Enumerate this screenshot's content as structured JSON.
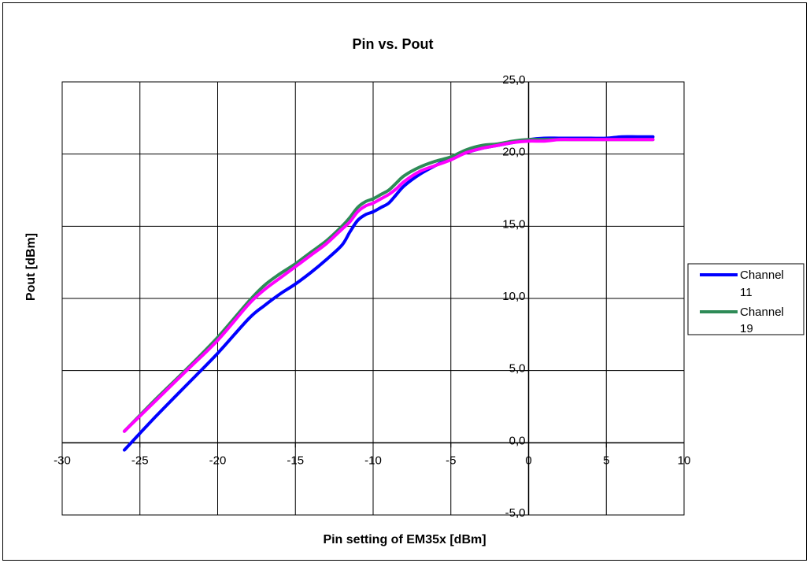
{
  "chart_data": {
    "type": "line",
    "title": "Pin vs. Pout",
    "xlabel": "Pin setting of EM35x [dBm]",
    "ylabel": "Pout [dBm]",
    "xlim": [
      -30,
      10
    ],
    "ylim": [
      -5,
      25
    ],
    "x_ticks": [
      "-30",
      "-25",
      "-20",
      "-15",
      "-10",
      "-5",
      "0",
      "5",
      "10"
    ],
    "y_ticks": [
      "-5,0",
      "0,0",
      "5,0",
      "10,0",
      "15,0",
      "20,0",
      "25,0"
    ],
    "grid": true,
    "legend_position": "right",
    "series": [
      {
        "name": "Channel 11",
        "color": "#0000ff",
        "x": [
          -26,
          -24,
          -22,
          -20,
          -18,
          -17,
          -16,
          -15,
          -14,
          -13,
          -12,
          -11.5,
          -11,
          -10.5,
          -10,
          -9.5,
          -9,
          -8.5,
          -8,
          -7,
          -6,
          -5,
          -4,
          -3,
          -2,
          -1,
          0,
          1,
          2,
          3,
          4,
          5,
          6,
          7,
          8
        ],
        "values": [
          -0.5,
          1.8,
          4.0,
          6.2,
          8.6,
          9.5,
          10.3,
          11.0,
          11.8,
          12.7,
          13.7,
          14.6,
          15.4,
          15.8,
          16.0,
          16.3,
          16.6,
          17.2,
          17.8,
          18.6,
          19.2,
          19.7,
          20.1,
          20.4,
          20.6,
          20.8,
          21.0,
          21.1,
          21.1,
          21.1,
          21.1,
          21.1,
          21.2,
          21.2,
          21.2
        ]
      },
      {
        "name": "Channel 19",
        "color": "#2e8b57",
        "x": [
          -26,
          -24,
          -22,
          -20,
          -18,
          -17,
          -16,
          -15,
          -14,
          -13,
          -12,
          -11.5,
          -11,
          -10.5,
          -10,
          -9.5,
          -9,
          -8.5,
          -8,
          -7,
          -6,
          -5,
          -4,
          -3,
          -2,
          -1,
          0,
          1,
          2,
          3,
          4,
          5,
          6,
          7,
          8
        ],
        "values": [
          0.8,
          3.0,
          5.1,
          7.3,
          9.8,
          10.9,
          11.7,
          12.4,
          13.2,
          14.0,
          15.0,
          15.6,
          16.3,
          16.7,
          16.9,
          17.2,
          17.5,
          18.0,
          18.5,
          19.1,
          19.5,
          19.8,
          20.3,
          20.6,
          20.7,
          20.9,
          21.0,
          21.0,
          21.0,
          21.0,
          21.0,
          21.0,
          21.0,
          21.0,
          21.0
        ]
      },
      {
        "color": "#ff00ff",
        "x": [
          -26,
          -24,
          -22,
          -20,
          -18,
          -17,
          -16,
          -15,
          -14,
          -13,
          -12,
          -11.5,
          -11,
          -10.5,
          -10,
          -9.5,
          -9,
          -8.5,
          -8,
          -7,
          -6,
          -5,
          -4,
          -3,
          -2,
          -1,
          0,
          1,
          2,
          3,
          4,
          5,
          6,
          7,
          8
        ],
        "values": [
          0.8,
          2.9,
          5.0,
          7.1,
          9.6,
          10.6,
          11.4,
          12.2,
          13.0,
          13.8,
          14.8,
          15.3,
          16.0,
          16.4,
          16.6,
          16.9,
          17.2,
          17.6,
          18.1,
          18.8,
          19.2,
          19.6,
          20.1,
          20.4,
          20.6,
          20.8,
          20.9,
          20.9,
          21.0,
          21.0,
          21.0,
          21.0,
          21.0,
          21.0,
          21.0
        ]
      }
    ]
  }
}
